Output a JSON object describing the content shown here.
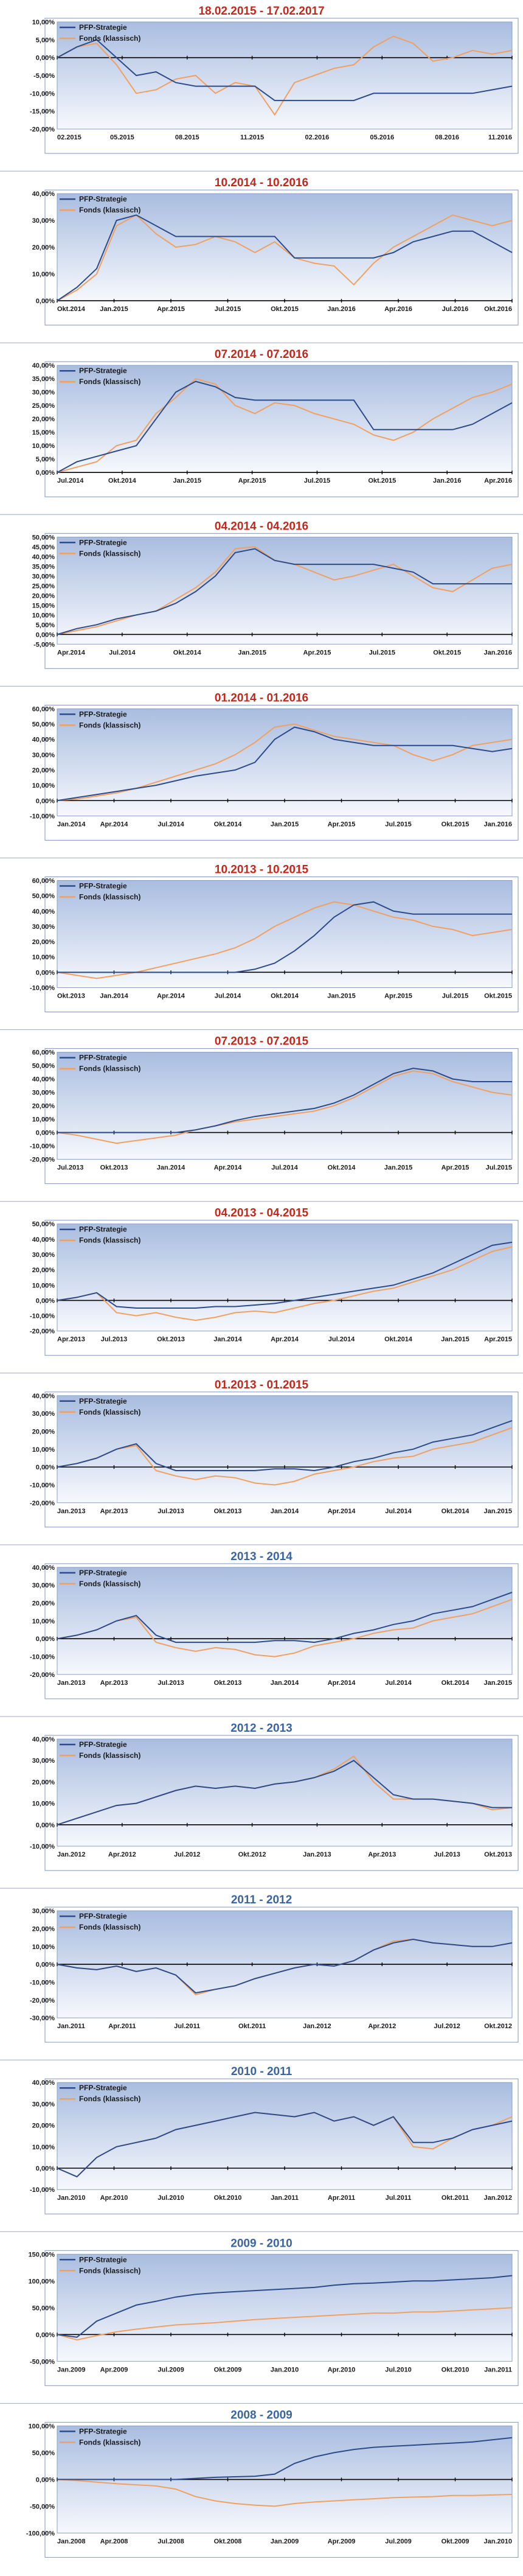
{
  "colors": {
    "strategy": "#2b4b8a",
    "fund": "#f0a060",
    "title_red": "#c0281c",
    "title_blue": "#3a64a0",
    "plot_top": "#a9bde0",
    "plot_bottom": "#f6f8fd",
    "frame_line": "#7f95c0"
  },
  "legend": {
    "strategy": "PFP-Strategie",
    "fund": "Fonds (klassisch)"
  },
  "chart_data": [
    {
      "type": "line",
      "title": "18.02.2015 - 17.02.2017",
      "title_color": "red",
      "y_ticks": [
        "10,00%",
        "5,00%",
        "0,00%",
        "-5,00%",
        "-10,00%",
        "-15,00%",
        "-20,00%"
      ],
      "y_min": -20,
      "y_max": 10,
      "x_ticks": [
        "02.2015",
        "05.2015",
        "08.2015",
        "11.2015",
        "02.2016",
        "05.2016",
        "08.2016",
        "11.2016"
      ],
      "strategy": [
        0,
        3,
        5,
        0,
        -5,
        -4,
        -7,
        -8,
        -8,
        -8,
        -8,
        -12,
        -12,
        -12,
        -12,
        -12,
        -10,
        -10,
        -10,
        -10,
        -10,
        -10,
        -9,
        -8
      ],
      "fund": [
        0,
        3,
        4,
        -2,
        -10,
        -9,
        -6,
        -5,
        -10,
        -7,
        -8,
        -16,
        -7,
        -5,
        -3,
        -2,
        3,
        6,
        4,
        -1,
        0,
        2,
        1,
        2
      ]
    },
    {
      "type": "line",
      "title": "10.2014 - 10.2016",
      "title_color": "red",
      "y_ticks": [
        "40,00%",
        "30,00%",
        "20,00%",
        "10,00%",
        "0,00%"
      ],
      "y_min": 0,
      "y_max": 40,
      "x_ticks": [
        "Okt.2014",
        "Jan.2015",
        "Apr.2015",
        "Jul.2015",
        "Okt.2015",
        "Jan.2016",
        "Apr.2016",
        "Jul.2016",
        "Okt.2016"
      ],
      "strategy": [
        0,
        5,
        12,
        30,
        32,
        28,
        24,
        24,
        24,
        24,
        24,
        24,
        16,
        16,
        16,
        16,
        16,
        18,
        22,
        24,
        26,
        26,
        22,
        18
      ],
      "fund": [
        0,
        4,
        10,
        28,
        32,
        25,
        20,
        21,
        24,
        22,
        18,
        22,
        16,
        14,
        13,
        6,
        14,
        20,
        24,
        28,
        32,
        30,
        28,
        30
      ]
    },
    {
      "type": "line",
      "title": "07.2014 - 07.2016",
      "title_color": "red",
      "y_ticks": [
        "40,00%",
        "35,00%",
        "30,00%",
        "25,00%",
        "20,00%",
        "15,00%",
        "10,00%",
        "5,00%",
        "0,00%"
      ],
      "y_min": 0,
      "y_max": 40,
      "x_ticks": [
        "Jul.2014",
        "Okt.2014",
        "Jan.2015",
        "Apr.2015",
        "Jul.2015",
        "Okt.2015",
        "Jan.2016",
        "Apr.2016"
      ],
      "strategy": [
        0,
        4,
        6,
        8,
        10,
        20,
        30,
        34,
        32,
        28,
        27,
        27,
        27,
        27,
        27,
        27,
        16,
        16,
        16,
        16,
        16,
        18,
        22,
        26
      ],
      "fund": [
        0,
        2,
        4,
        10,
        12,
        22,
        28,
        35,
        33,
        25,
        22,
        26,
        25,
        22,
        20,
        18,
        14,
        12,
        15,
        20,
        24,
        28,
        30,
        33
      ]
    },
    {
      "type": "line",
      "title": "04.2014 - 04.2016",
      "title_color": "red",
      "y_ticks": [
        "50,00%",
        "45,00%",
        "40,00%",
        "35,00%",
        "30,00%",
        "25,00%",
        "20,00%",
        "15,00%",
        "10,00%",
        "5,00%",
        "0,00%",
        "-5,00%"
      ],
      "y_min": -5,
      "y_max": 50,
      "x_ticks": [
        "Apr.2014",
        "Jul.2014",
        "Okt.2014",
        "Jan.2015",
        "Apr.2015",
        "Jul.2015",
        "Okt.2015",
        "Jan.2016"
      ],
      "strategy": [
        0,
        3,
        5,
        8,
        10,
        12,
        16,
        22,
        30,
        42,
        44,
        38,
        36,
        36,
        36,
        36,
        36,
        34,
        32,
        26,
        26,
        26,
        26,
        26
      ],
      "fund": [
        0,
        2,
        4,
        7,
        10,
        12,
        18,
        24,
        32,
        44,
        45,
        38,
        36,
        32,
        28,
        30,
        33,
        36,
        30,
        24,
        22,
        28,
        34,
        36
      ]
    },
    {
      "type": "line",
      "title": "01.2014 - 01.2016",
      "title_color": "red",
      "y_ticks": [
        "60,00%",
        "50,00%",
        "40,00%",
        "30,00%",
        "20,00%",
        "10,00%",
        "0,00%",
        "-10,00%"
      ],
      "y_min": -10,
      "y_max": 60,
      "x_ticks": [
        "Jan.2014",
        "Apr.2014",
        "Jul.2014",
        "Okt.2014",
        "Jan.2015",
        "Apr.2015",
        "Jul.2015",
        "Okt.2015",
        "Jan.2016"
      ],
      "strategy": [
        0,
        2,
        4,
        6,
        8,
        10,
        13,
        16,
        18,
        20,
        25,
        40,
        48,
        45,
        40,
        38,
        36,
        36,
        36,
        36,
        36,
        34,
        32,
        34
      ],
      "fund": [
        0,
        1,
        3,
        5,
        8,
        12,
        16,
        20,
        24,
        30,
        38,
        48,
        50,
        46,
        42,
        40,
        38,
        36,
        30,
        26,
        30,
        36,
        38,
        40
      ]
    },
    {
      "type": "line",
      "title": "10.2013 - 10.2015",
      "title_color": "red",
      "y_ticks": [
        "60,00%",
        "50,00%",
        "40,00%",
        "30,00%",
        "20,00%",
        "10,00%",
        "0,00%",
        "-10,00%"
      ],
      "y_min": -10,
      "y_max": 60,
      "x_ticks": [
        "Okt.2013",
        "Jan.2014",
        "Apr.2014",
        "Jul.2014",
        "Okt.2014",
        "Jan.2015",
        "Apr.2015",
        "Jul.2015",
        "Okt.2015"
      ],
      "strategy": [
        0,
        0,
        0,
        0,
        0,
        0,
        0,
        0,
        0,
        0,
        2,
        6,
        14,
        24,
        36,
        44,
        46,
        40,
        38,
        38,
        38,
        38,
        38,
        38
      ],
      "fund": [
        0,
        -2,
        -4,
        -2,
        0,
        3,
        6,
        9,
        12,
        16,
        22,
        30,
        36,
        42,
        46,
        44,
        40,
        36,
        34,
        30,
        28,
        24,
        26,
        28
      ]
    },
    {
      "type": "line",
      "title": "07.2013 - 07.2015",
      "title_color": "red",
      "y_ticks": [
        "60,00%",
        "50,00%",
        "40,00%",
        "30,00%",
        "20,00%",
        "10,00%",
        "0,00%",
        "-10,00%",
        "-20,00%"
      ],
      "y_min": -20,
      "y_max": 60,
      "x_ticks": [
        "Jul.2013",
        "Okt.2013",
        "Jan.2014",
        "Apr.2014",
        "Jul.2014",
        "Okt.2014",
        "Jan.2015",
        "Apr.2015",
        "Jul.2015"
      ],
      "strategy": [
        0,
        0,
        0,
        0,
        0,
        0,
        0,
        2,
        5,
        9,
        12,
        14,
        16,
        18,
        22,
        28,
        36,
        44,
        48,
        46,
        40,
        38,
        38,
        38
      ],
      "fund": [
        0,
        -2,
        -5,
        -8,
        -6,
        -4,
        -2,
        2,
        5,
        8,
        10,
        12,
        14,
        16,
        20,
        26,
        34,
        42,
        46,
        44,
        38,
        34,
        30,
        28
      ]
    },
    {
      "type": "line",
      "title": "04.2013 - 04.2015",
      "title_color": "red",
      "y_ticks": [
        "50,00%",
        "40,00%",
        "30,00%",
        "20,00%",
        "10,00%",
        "0,00%",
        "-10,00%",
        "-20,00%"
      ],
      "y_min": -20,
      "y_max": 50,
      "x_ticks": [
        "Apr.2013",
        "Jul.2013",
        "Okt.2013",
        "Jan.2014",
        "Apr.2014",
        "Jul.2014",
        "Okt.2014",
        "Jan.2015",
        "Apr.2015"
      ],
      "strategy": [
        0,
        2,
        5,
        -4,
        -5,
        -5,
        -5,
        -5,
        -4,
        -4,
        -3,
        -2,
        0,
        2,
        4,
        6,
        8,
        10,
        14,
        18,
        24,
        30,
        36,
        38
      ],
      "fund": [
        0,
        2,
        5,
        -8,
        -10,
        -8,
        -11,
        -13,
        -11,
        -8,
        -7,
        -8,
        -5,
        -2,
        0,
        3,
        6,
        8,
        12,
        16,
        20,
        26,
        32,
        35
      ]
    },
    {
      "type": "line",
      "title": "01.2013 - 01.2015",
      "title_color": "red",
      "y_ticks": [
        "40,00%",
        "30,00%",
        "20,00%",
        "10,00%",
        "0,00%",
        "-10,00%",
        "-20,00%"
      ],
      "y_min": -20,
      "y_max": 40,
      "x_ticks": [
        "Jan.2013",
        "Apr.2013",
        "Jul.2013",
        "Okt.2013",
        "Jan.2014",
        "Apr.2014",
        "Jul.2014",
        "Okt.2014",
        "Jan.2015"
      ],
      "strategy": [
        0,
        2,
        5,
        10,
        13,
        2,
        -2,
        -2,
        -2,
        -2,
        -2,
        -1,
        -1,
        -2,
        0,
        3,
        5,
        8,
        10,
        14,
        16,
        18,
        22,
        26
      ],
      "fund": [
        0,
        2,
        5,
        10,
        12,
        -2,
        -5,
        -7,
        -5,
        -6,
        -9,
        -10,
        -8,
        -4,
        -2,
        0,
        3,
        5,
        6,
        10,
        12,
        14,
        18,
        22
      ]
    },
    {
      "type": "line",
      "title": "2013 - 2014",
      "title_color": "blue",
      "y_ticks": [
        "40,00%",
        "30,00%",
        "20,00%",
        "10,00%",
        "0,00%",
        "-10,00%",
        "-20,00%"
      ],
      "y_min": -20,
      "y_max": 40,
      "x_ticks": [
        "Jan.2013",
        "Apr.2013",
        "Jul.2013",
        "Okt.2013",
        "Jan.2014",
        "Apr.2014",
        "Jul.2014",
        "Okt.2014",
        "Jan.2015"
      ],
      "strategy": [
        0,
        2,
        5,
        10,
        13,
        2,
        -2,
        -2,
        -2,
        -2,
        -2,
        -1,
        -1,
        -2,
        0,
        3,
        5,
        8,
        10,
        14,
        16,
        18,
        22,
        26
      ],
      "fund": [
        0,
        2,
        5,
        10,
        12,
        -2,
        -5,
        -7,
        -5,
        -6,
        -9,
        -10,
        -8,
        -4,
        -2,
        0,
        3,
        5,
        6,
        10,
        12,
        14,
        18,
        22
      ]
    },
    {
      "type": "line",
      "title": "2012 - 2013",
      "title_color": "blue",
      "y_ticks": [
        "40,00%",
        "30,00%",
        "20,00%",
        "10,00%",
        "0,00%",
        "-10,00%"
      ],
      "y_min": -10,
      "y_max": 40,
      "x_ticks": [
        "Jan.2012",
        "Apr.2012",
        "Jul.2012",
        "Okt.2012",
        "Jan.2013",
        "Apr.2013",
        "Jul.2013",
        "Okt.2013"
      ],
      "strategy": [
        0,
        3,
        6,
        9,
        10,
        13,
        16,
        18,
        17,
        18,
        17,
        19,
        20,
        22,
        25,
        30,
        22,
        14,
        12,
        12,
        11,
        10,
        8,
        8
      ],
      "fund": [
        0,
        3,
        6,
        9,
        10,
        13,
        16,
        18,
        17,
        18,
        17,
        19,
        20,
        22,
        26,
        32,
        20,
        12,
        12,
        12,
        11,
        10,
        7,
        8
      ]
    },
    {
      "type": "line",
      "title": "2011 - 2012",
      "title_color": "blue",
      "y_ticks": [
        "30,00%",
        "20,00%",
        "10,00%",
        "0,00%",
        "-10,00%",
        "-20,00%",
        "-30,00%"
      ],
      "y_min": -30,
      "y_max": 30,
      "x_ticks": [
        "Jan.2011",
        "Apr.2011",
        "Jul.2011",
        "Okt.2011",
        "Jan.2012",
        "Apr.2012",
        "Jul.2012",
        "Okt.2012"
      ],
      "strategy": [
        0,
        -2,
        -3,
        -1,
        -4,
        -2,
        -6,
        -16,
        -14,
        -12,
        -8,
        -5,
        -2,
        0,
        -1,
        2,
        8,
        12,
        14,
        12,
        11,
        10,
        10,
        12
      ],
      "fund": [
        0,
        -2,
        -3,
        -1,
        -4,
        -2,
        -6,
        -17,
        -14,
        -12,
        -8,
        -5,
        -2,
        0,
        -1,
        2,
        8,
        13,
        14,
        12,
        11,
        10,
        10,
        12
      ]
    },
    {
      "type": "line",
      "title": "2010 - 2011",
      "title_color": "blue",
      "y_ticks": [
        "40,00%",
        "30,00%",
        "20,00%",
        "10,00%",
        "0,00%",
        "-10,00%"
      ],
      "y_min": -10,
      "y_max": 40,
      "x_ticks": [
        "Jan.2010",
        "Apr.2010",
        "Jul.2010",
        "Okt.2010",
        "Jan.2011",
        "Apr.2011",
        "Jul.2011",
        "Okt.2011",
        "Jan.2012"
      ],
      "strategy": [
        0,
        -4,
        5,
        10,
        12,
        14,
        18,
        20,
        22,
        24,
        26,
        25,
        24,
        26,
        22,
        24,
        20,
        24,
        12,
        12,
        14,
        18,
        20,
        22
      ],
      "fund": [
        0,
        -4,
        5,
        10,
        12,
        14,
        18,
        20,
        22,
        24,
        26,
        25,
        24,
        26,
        22,
        24,
        20,
        24,
        10,
        9,
        14,
        18,
        20,
        24
      ]
    },
    {
      "type": "line",
      "title": "2009 - 2010",
      "title_color": "blue",
      "y_ticks": [
        "150,00%",
        "100,00%",
        "50,00%",
        "0,00%",
        "-50,00%"
      ],
      "y_min": -50,
      "y_max": 150,
      "x_ticks": [
        "Jan.2009",
        "Apr.2009",
        "Jul.2009",
        "Okt.2009",
        "Jan.2010",
        "Apr.2010",
        "Jul.2010",
        "Okt.2010",
        "Jan.2011"
      ],
      "strategy": [
        0,
        -5,
        25,
        40,
        55,
        62,
        70,
        75,
        78,
        80,
        82,
        84,
        86,
        88,
        92,
        95,
        96,
        98,
        100,
        100,
        102,
        104,
        106,
        110
      ],
      "fund": [
        0,
        -10,
        -2,
        5,
        10,
        14,
        18,
        20,
        22,
        25,
        28,
        30,
        32,
        34,
        36,
        38,
        40,
        40,
        42,
        42,
        44,
        46,
        48,
        50
      ]
    },
    {
      "type": "line",
      "title": "2008 - 2009",
      "title_color": "blue",
      "y_ticks": [
        "100,00%",
        "50,00%",
        "0,00%",
        "-50,00%",
        "-100,00%"
      ],
      "y_min": -100,
      "y_max": 100,
      "x_ticks": [
        "Jan.2008",
        "Apr.2008",
        "Jul.2008",
        "Okt.2008",
        "Jan.2009",
        "Apr.2009",
        "Jul.2009",
        "Okt.2009",
        "Jan.2010"
      ],
      "strategy": [
        0,
        0,
        0,
        0,
        0,
        0,
        0,
        2,
        4,
        5,
        6,
        10,
        30,
        42,
        50,
        56,
        60,
        62,
        64,
        66,
        68,
        70,
        74,
        78
      ],
      "fund": [
        0,
        -2,
        -5,
        -8,
        -10,
        -12,
        -18,
        -32,
        -40,
        -45,
        -48,
        -50,
        -45,
        -42,
        -40,
        -38,
        -36,
        -34,
        -33,
        -32,
        -30,
        -30,
        -29,
        -28
      ]
    }
  ]
}
